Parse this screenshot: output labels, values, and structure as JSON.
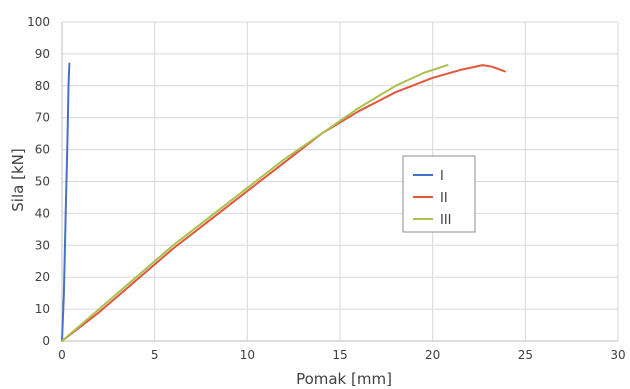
{
  "chart_data": {
    "type": "line",
    "xlabel": "Pomak [mm]",
    "ylabel": "Sila [kN]",
    "xlim": [
      0,
      30
    ],
    "ylim": [
      0,
      100
    ],
    "xticks": [
      "0",
      "5",
      "10",
      "15",
      "20",
      "25",
      "30"
    ],
    "yticks": [
      "0",
      "10",
      "20",
      "30",
      "40",
      "50",
      "60",
      "70",
      "80",
      "90",
      "100"
    ],
    "grid": true,
    "legend_position": "center-right",
    "series": [
      {
        "name": "I",
        "color": "#4472c4",
        "x": [
          0,
          0.1,
          0.2,
          0.3,
          0.35,
          0.4
        ],
        "y": [
          0,
          15,
          40,
          65,
          80,
          87
        ]
      },
      {
        "name": "II",
        "color": "#e2563b",
        "x": [
          0,
          2,
          4,
          6,
          8,
          10,
          12,
          14,
          16,
          18,
          20,
          21.5,
          22.7,
          23.2,
          23.9
        ],
        "y": [
          0,
          9,
          19,
          29,
          38,
          47,
          56,
          65,
          72,
          78,
          82.5,
          85,
          86.5,
          86,
          84.5
        ]
      },
      {
        "name": "III",
        "color": "#a9c24f",
        "x": [
          0,
          2,
          4,
          6,
          8,
          10,
          12,
          14,
          16,
          18,
          19.5,
          20.8
        ],
        "y": [
          0,
          10,
          20,
          30,
          39,
          48,
          57,
          65,
          73,
          80,
          84,
          86.5
        ]
      }
    ]
  }
}
